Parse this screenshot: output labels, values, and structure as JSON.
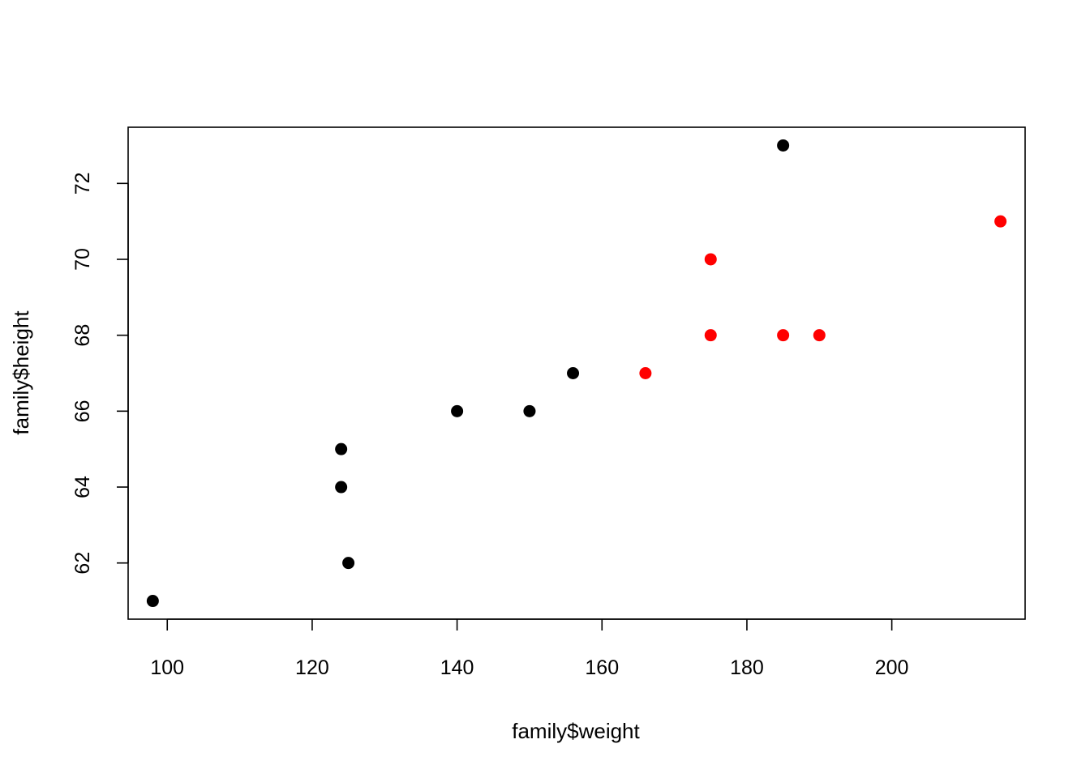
{
  "chart_data": {
    "type": "scatter",
    "title": "",
    "xlabel": "family$weight",
    "ylabel": "family$height",
    "xlim": [
      94.6,
      218.4
    ],
    "ylim": [
      60.52,
      73.48
    ],
    "x_ticks": [
      100,
      120,
      140,
      160,
      180,
      200
    ],
    "y_ticks": [
      62,
      64,
      66,
      68,
      70,
      72
    ],
    "grid": false,
    "series": [
      {
        "name": "black",
        "color": "#000000",
        "points": [
          {
            "x": 98,
            "y": 61
          },
          {
            "x": 124,
            "y": 65
          },
          {
            "x": 124,
            "y": 64
          },
          {
            "x": 125,
            "y": 62
          },
          {
            "x": 140,
            "y": 66
          },
          {
            "x": 150,
            "y": 66
          },
          {
            "x": 156,
            "y": 67
          },
          {
            "x": 185,
            "y": 73
          }
        ]
      },
      {
        "name": "red",
        "color": "#ff0000",
        "points": [
          {
            "x": 166,
            "y": 67
          },
          {
            "x": 175,
            "y": 70
          },
          {
            "x": 175,
            "y": 68
          },
          {
            "x": 185,
            "y": 68
          },
          {
            "x": 190,
            "y": 68
          },
          {
            "x": 215,
            "y": 71
          }
        ]
      }
    ]
  }
}
